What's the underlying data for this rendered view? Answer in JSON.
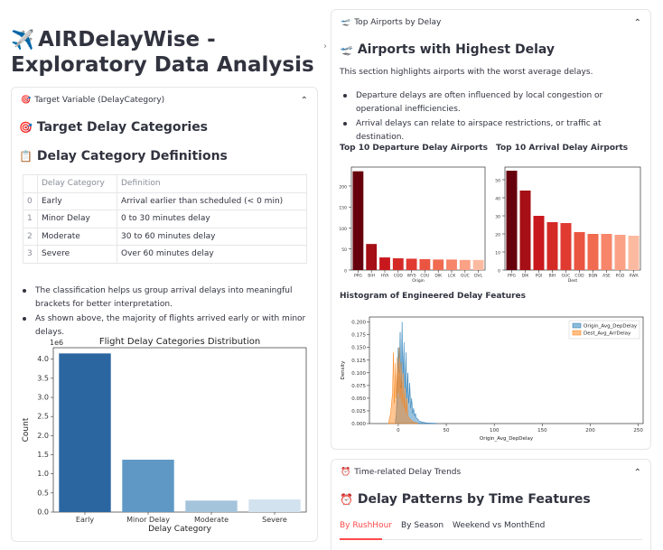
{
  "page_title": "AIRDelayWise - Exploratory Data Analysis",
  "icons": {
    "title": "airplane-icon",
    "target": "dart-icon",
    "clipboard": "clipboard-icon",
    "plane_small": "airplane-departure-icon",
    "clock": "alarm-clock-icon",
    "chevron": "chevron-up-icon",
    "collapse": "chevron-right-icon"
  },
  "target_expander": {
    "header": "Target Variable (DelayCategory)",
    "heading": "Target Delay Categories",
    "definitions_heading": "Delay Category Definitions",
    "table": {
      "columns": [
        "",
        "Delay Category",
        "Definition"
      ],
      "rows": [
        [
          "0",
          "Early",
          "Arrival earlier than scheduled (< 0 min)"
        ],
        [
          "1",
          "Minor Delay",
          "0 to 30 minutes delay"
        ],
        [
          "2",
          "Moderate",
          "30 to 60 minutes delay"
        ],
        [
          "3",
          "Severe",
          "Over 60 minutes delay"
        ]
      ]
    },
    "bullets": [
      "The classification helps us group arrival delays into meaningful brackets for better interpretation.",
      "As shown above, the majority of flights arrived early or with minor delays."
    ]
  },
  "airports_expander": {
    "header": "Top Airports by Delay",
    "heading": "Airports with Highest Delay",
    "intro": "This section highlights airports with the worst average delays.",
    "bullets": [
      "Departure delays are often influenced by local congestion or operational inefficiencies.",
      "Arrival delays can relate to airspace restrictions, or traffic at destination."
    ],
    "dep_chart_title": "Top 10 Departure Delay Airports",
    "arr_chart_title": "Top 10 Arrival Delay Airports",
    "hist_title": "Histogram of Engineered Delay Features"
  },
  "time_expander": {
    "header": "Time-related Delay Trends",
    "heading": "Delay Patterns by Time Features",
    "tabs": [
      "By RushHour",
      "By Season",
      "Weekend vs MonthEnd"
    ],
    "active_tab": 0
  },
  "colors": {
    "accent": "#ff4b4b",
    "text": "#31333f"
  },
  "chart_data": [
    {
      "type": "bar",
      "title": "Flight Delay Categories Distribution",
      "categories": [
        "Early",
        "Minor Delay",
        "Moderate",
        "Severe"
      ],
      "values": [
        4.15,
        1.37,
        0.3,
        0.33
      ],
      "colors": [
        "#2b66a0",
        "#5f98c4",
        "#a4c4dc",
        "#d3e2ef"
      ],
      "xlabel": "Delay Category",
      "ylabel": "Count",
      "scale_label": "1e6",
      "ylim": [
        0,
        4.3
      ],
      "yticks": [
        0.0,
        0.5,
        1.0,
        1.5,
        2.0,
        2.5,
        3.0,
        3.5,
        4.0
      ]
    },
    {
      "type": "bar",
      "categories": [
        "PPG",
        "BIH",
        "HYA",
        "COD",
        "WYS",
        "COU",
        "DIK",
        "LCK",
        "GUC",
        "DVL"
      ],
      "values": [
        235,
        62,
        30,
        28,
        27,
        26,
        25,
        25,
        24,
        24
      ],
      "colors": [
        "#67000d",
        "#a50f15",
        "#c9181d",
        "#d42a26",
        "#e03a31",
        "#ea5541",
        "#f06b4f",
        "#f6856a",
        "#fba185",
        "#fcbba1"
      ],
      "xlabel": "Origin",
      "ylabel": "",
      "ylim": [
        0,
        245
      ],
      "yticks": [
        0,
        50,
        100,
        150,
        200
      ]
    },
    {
      "type": "bar",
      "categories": [
        "PPG",
        "DIK",
        "PQI",
        "BIH",
        "GUC",
        "COD",
        "BQN",
        "ASE",
        "PGD",
        "XWA"
      ],
      "values": [
        55,
        44,
        30,
        26.5,
        26,
        21,
        20,
        20,
        19.5,
        19
      ],
      "colors": [
        "#67000d",
        "#a50f15",
        "#c9181d",
        "#d42a26",
        "#e03a31",
        "#ea5541",
        "#f06b4f",
        "#f6856a",
        "#fba185",
        "#fcbba1"
      ],
      "xlabel": "Dest",
      "ylabel": "",
      "ylim": [
        0,
        57
      ],
      "yticks": [
        0,
        10,
        20,
        30,
        40,
        50
      ]
    },
    {
      "type": "area",
      "xlabel": "Origin_Avg_DepDelay",
      "ylabel": "Density",
      "xlim": [
        -30,
        255
      ],
      "ylim": [
        0,
        0.21
      ],
      "xticks": [
        0,
        50,
        100,
        150,
        200,
        250
      ],
      "yticks": [
        0.0,
        0.025,
        0.05,
        0.075,
        0.1,
        0.125,
        0.15,
        0.175,
        0.2
      ],
      "ytick_labels": [
        "0.000",
        "0.025",
        "0.050",
        "0.075",
        "0.100",
        "0.125",
        "0.150",
        "0.175",
        "0.200"
      ],
      "series": [
        {
          "name": "Origin_Avg_DepDelay",
          "color": "#1f77b4",
          "x": [
            -3,
            -2,
            -1,
            0,
            1,
            2,
            3,
            4,
            5,
            6,
            7,
            8,
            9,
            10,
            11,
            12,
            13,
            14,
            15,
            16,
            17,
            18,
            19,
            20,
            22,
            25,
            30,
            40
          ],
          "y": [
            0.005,
            0.02,
            0.07,
            0.15,
            0.1,
            0.18,
            0.07,
            0.2,
            0.09,
            0.16,
            0.06,
            0.14,
            0.05,
            0.1,
            0.04,
            0.08,
            0.03,
            0.05,
            0.02,
            0.03,
            0.015,
            0.02,
            0.01,
            0.01,
            0.005,
            0.003,
            0.001,
            0.0005
          ]
        },
        {
          "name": "Dest_Avg_ArrDelay",
          "color": "#ff7f0e",
          "x": [
            -10,
            -8,
            -6,
            -5,
            -4,
            -3,
            -2,
            -1,
            0,
            1,
            2,
            3,
            4,
            5,
            6,
            7,
            8,
            9,
            10,
            12,
            14,
            16,
            20
          ],
          "y": [
            0.003,
            0.02,
            0.06,
            0.14,
            0.04,
            0.12,
            0.05,
            0.13,
            0.06,
            0.15,
            0.05,
            0.12,
            0.04,
            0.1,
            0.03,
            0.07,
            0.02,
            0.05,
            0.015,
            0.01,
            0.006,
            0.003,
            0.001
          ]
        }
      ],
      "legend": "top-right"
    }
  ]
}
